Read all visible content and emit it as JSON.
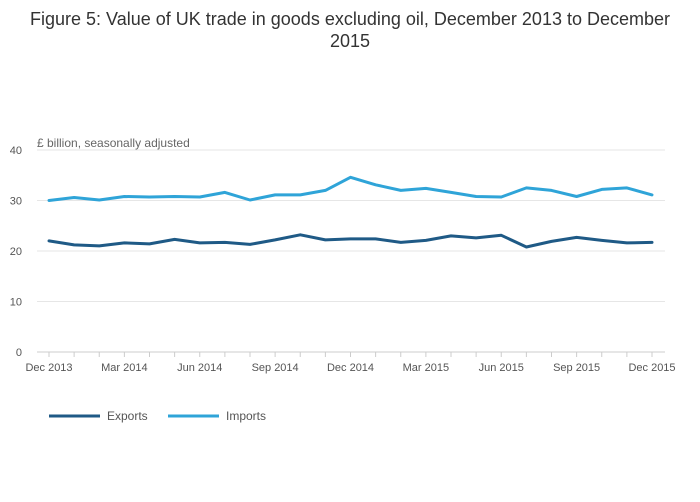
{
  "chart_data": {
    "type": "line",
    "title": "Figure 5: Value of UK trade in goods excluding oil, December 2013 to December 2015",
    "subtitle": "£ billion, seasonally adjusted",
    "xlabel": "",
    "ylabel": "",
    "ylim": [
      0,
      40
    ],
    "yticks": [
      0,
      10,
      20,
      30,
      40
    ],
    "grid": true,
    "legend_position": "bottom-left",
    "categories": [
      "Dec 2013",
      "Jan 2014",
      "Feb 2014",
      "Mar 2014",
      "Apr 2014",
      "May 2014",
      "Jun 2014",
      "Jul 2014",
      "Aug 2014",
      "Sep 2014",
      "Oct 2014",
      "Nov 2014",
      "Dec 2014",
      "Jan 2015",
      "Feb 2015",
      "Mar 2015",
      "Apr 2015",
      "May 2015",
      "Jun 2015",
      "Jul 2015",
      "Aug 2015",
      "Sep 2015",
      "Oct 2015",
      "Nov 2015",
      "Dec 2015"
    ],
    "x_tick_labels": [
      "Dec 2013",
      "Mar 2014",
      "Jun 2014",
      "Sep 2014",
      "Dec 2014",
      "Mar 2015",
      "Jun 2015",
      "Sep 2015",
      "Dec 2015"
    ],
    "series": [
      {
        "name": "Exports",
        "color": "#1f5a86",
        "values": [
          22.0,
          21.2,
          21.0,
          21.6,
          21.4,
          22.3,
          21.6,
          21.7,
          21.3,
          22.2,
          23.2,
          22.2,
          22.4,
          22.4,
          21.7,
          22.1,
          23.0,
          22.6,
          23.1,
          20.8,
          21.9,
          22.7,
          22.1,
          21.6,
          21.7
        ]
      },
      {
        "name": "Imports",
        "color": "#2fa4d8",
        "values": [
          30.0,
          30.6,
          30.1,
          30.8,
          30.7,
          30.8,
          30.7,
          31.6,
          30.1,
          31.1,
          31.1,
          32.0,
          34.6,
          33.1,
          32.0,
          32.4,
          31.6,
          30.8,
          30.7,
          32.5,
          32.0,
          30.8,
          32.2,
          32.5,
          31.1
        ]
      }
    ]
  }
}
